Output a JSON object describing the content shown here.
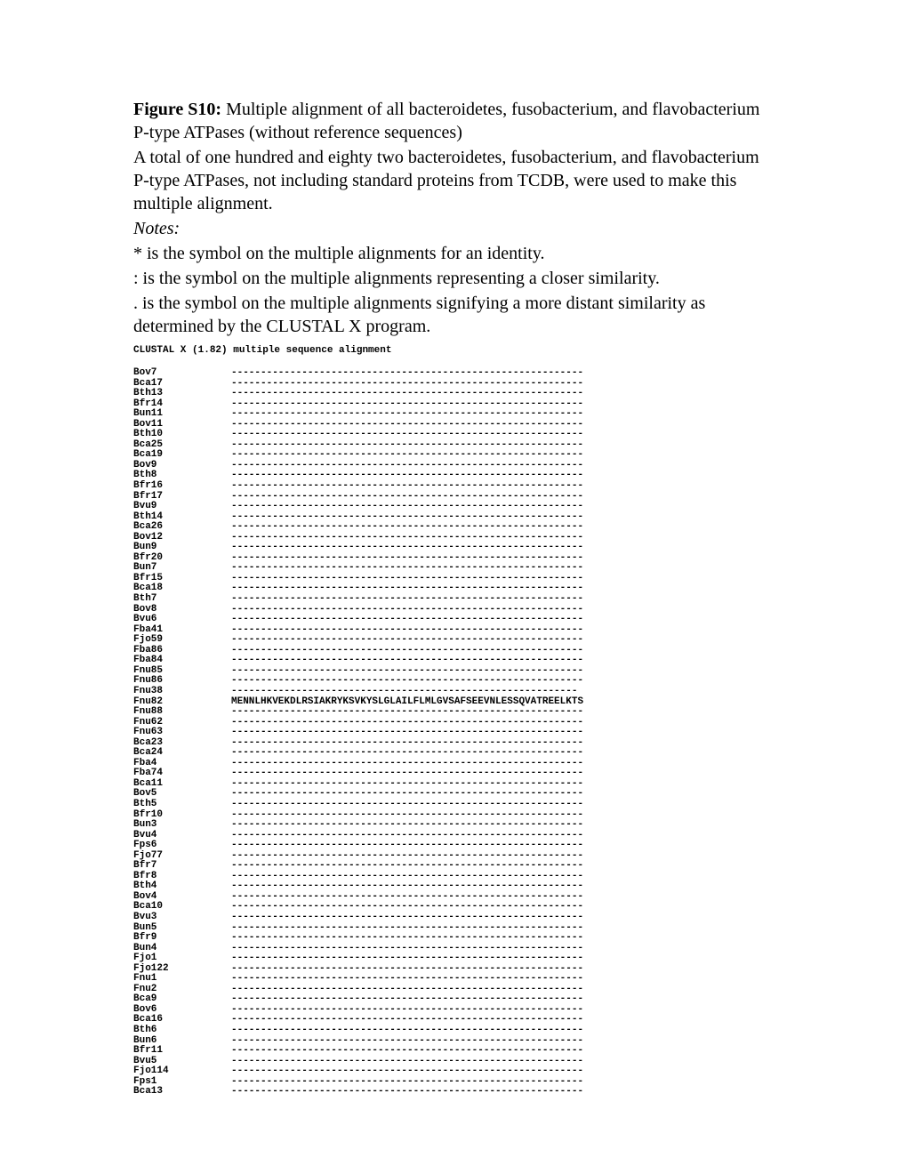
{
  "figure_label": "Figure S10:",
  "figure_title": " Multiple alignment of all bacteroidetes, fusobacterium, and flavobacterium P-type ATPases (without reference sequences)",
  "para2": "A total of one hundred and eighty two bacteroidetes, fusobacterium, and flavobacterium P-type ATPases, not including standard proteins from TCDB, were used to make this multiple alignment.",
  "notes_label": "Notes:",
  "note1": "* is the symbol on the multiple alignments for an identity.",
  "note2": ": is the symbol on the multiple alignments representing a closer similarity.",
  "note3": ". is the symbol on the multiple alignments signifying a more distant similarity as determined by the CLUSTAL X program.",
  "clustal_header": "CLUSTAL X (1.82) multiple sequence alignment",
  "dash60": "------------------------------------------------------------",
  "dash59": "-----------------------------------------------------------",
  "fnu82_seq": "MENNLHKVEKDLRSIAKRYKSVKYSLGLAILFLMLGVSAFSEEVNLESSQVATREELKTS",
  "sequences": [
    {
      "name": "Bov7",
      "data": "dash60"
    },
    {
      "name": "Bca17",
      "data": "dash60"
    },
    {
      "name": "Bth13",
      "data": "dash60"
    },
    {
      "name": "Bfr14",
      "data": "dash60"
    },
    {
      "name": "Bun11",
      "data": "dash60"
    },
    {
      "name": "Bov11",
      "data": "dash60"
    },
    {
      "name": "Bth10",
      "data": "dash60"
    },
    {
      "name": "Bca25",
      "data": "dash60"
    },
    {
      "name": "Bca19",
      "data": "dash60"
    },
    {
      "name": "Bov9",
      "data": "dash60"
    },
    {
      "name": "Bth8",
      "data": "dash60"
    },
    {
      "name": "Bfr16",
      "data": "dash60"
    },
    {
      "name": "Bfr17",
      "data": "dash60"
    },
    {
      "name": "Bvu9",
      "data": "dash60"
    },
    {
      "name": "Bth14",
      "data": "dash60"
    },
    {
      "name": "Bca26",
      "data": "dash60"
    },
    {
      "name": "Bov12",
      "data": "dash60"
    },
    {
      "name": "Bun9",
      "data": "dash60"
    },
    {
      "name": "Bfr20",
      "data": "dash60"
    },
    {
      "name": "Bun7",
      "data": "dash60"
    },
    {
      "name": "Bfr15",
      "data": "dash60"
    },
    {
      "name": "Bca18",
      "data": "dash60"
    },
    {
      "name": "Bth7",
      "data": "dash60"
    },
    {
      "name": "Bov8",
      "data": "dash60"
    },
    {
      "name": "Bvu6",
      "data": "dash60"
    },
    {
      "name": "Fba41",
      "data": "dash60"
    },
    {
      "name": "Fjo59",
      "data": "dash60"
    },
    {
      "name": "Fba86",
      "data": "dash60"
    },
    {
      "name": "Fba84",
      "data": "dash60"
    },
    {
      "name": "Fnu85",
      "data": "dash60"
    },
    {
      "name": "Fnu86",
      "data": "dash60"
    },
    {
      "name": "Fnu38",
      "data": "dash59"
    },
    {
      "name": "Fnu82",
      "data": "fnu82_seq"
    },
    {
      "name": "Fnu88",
      "data": "dash60"
    },
    {
      "name": "Fnu62",
      "data": "dash60"
    },
    {
      "name": "Fnu63",
      "data": "dash60"
    },
    {
      "name": "Bca23",
      "data": "dash60"
    },
    {
      "name": "Bca24",
      "data": "dash60"
    },
    {
      "name": "Fba4",
      "data": "dash60"
    },
    {
      "name": "Fba74",
      "data": "dash60"
    },
    {
      "name": "Bca11",
      "data": "dash60"
    },
    {
      "name": "Bov5",
      "data": "dash60"
    },
    {
      "name": "Bth5",
      "data": "dash60"
    },
    {
      "name": "Bfr10",
      "data": "dash60"
    },
    {
      "name": "Bun3",
      "data": "dash60"
    },
    {
      "name": "Bvu4",
      "data": "dash60"
    },
    {
      "name": "Fps6",
      "data": "dash60"
    },
    {
      "name": "Fjo77",
      "data": "dash60"
    },
    {
      "name": "Bfr7",
      "data": "dash60"
    },
    {
      "name": "Bfr8",
      "data": "dash60"
    },
    {
      "name": "Bth4",
      "data": "dash60"
    },
    {
      "name": "Bov4",
      "data": "dash60"
    },
    {
      "name": "Bca10",
      "data": "dash60"
    },
    {
      "name": "Bvu3",
      "data": "dash60"
    },
    {
      "name": "Bun5",
      "data": "dash60"
    },
    {
      "name": "Bfr9",
      "data": "dash60"
    },
    {
      "name": "Bun4",
      "data": "dash60"
    },
    {
      "name": "Fjo1",
      "data": "dash60"
    },
    {
      "name": "Fjo122",
      "data": "dash60"
    },
    {
      "name": "Fnu1",
      "data": "dash60"
    },
    {
      "name": "Fnu2",
      "data": "dash60"
    },
    {
      "name": "Bca9",
      "data": "dash60"
    },
    {
      "name": "Bov6",
      "data": "dash60"
    },
    {
      "name": "Bca16",
      "data": "dash60"
    },
    {
      "name": "Bth6",
      "data": "dash60"
    },
    {
      "name": "Bun6",
      "data": "dash60"
    },
    {
      "name": "Bfr11",
      "data": "dash60"
    },
    {
      "name": "Bvu5",
      "data": "dash60"
    },
    {
      "name": "Fjo114",
      "data": "dash60"
    },
    {
      "name": "Fps1",
      "data": "dash60"
    },
    {
      "name": "Bca13",
      "data": "dash60"
    }
  ]
}
